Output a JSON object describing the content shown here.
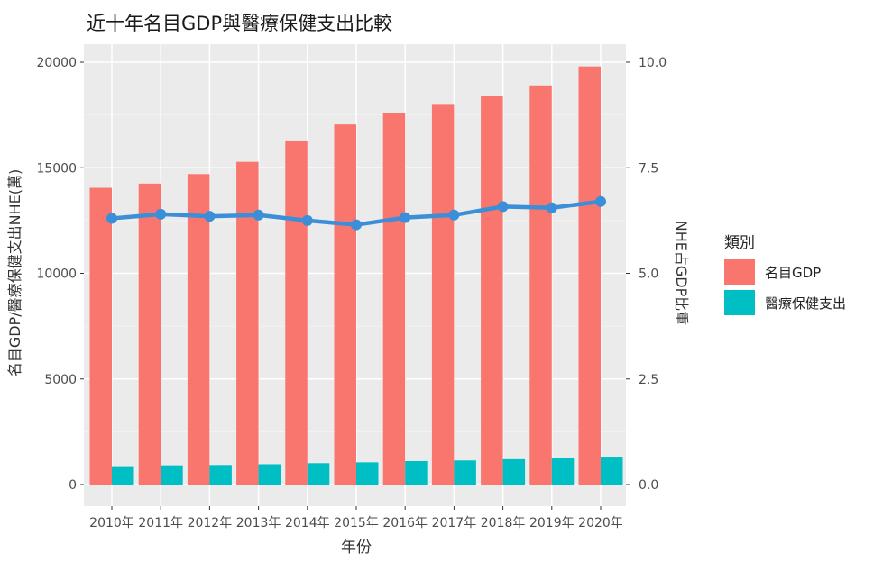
{
  "chart_data": {
    "type": "bar",
    "title": "近十年名目GDP與醫療保健支出比較",
    "xlabel": "年份",
    "ylabel": "名目GDP/醫療保健支出NHE(萬)",
    "y2label": "NHE占GDP比重",
    "categories": [
      "2010年",
      "2011年",
      "2012年",
      "2013年",
      "2014年",
      "2015年",
      "2016年",
      "2017年",
      "2018年",
      "2019年",
      "2020年"
    ],
    "ylim": [
      0,
      20000
    ],
    "yticks": [
      0,
      5000,
      10000,
      15000,
      20000
    ],
    "y2lim": [
      0,
      10
    ],
    "y2ticks": [
      "0.0",
      "2.5",
      "5.0",
      "7.5",
      "10.0"
    ],
    "legend": {
      "title": "類別",
      "position": "right"
    },
    "grid": true,
    "series": [
      {
        "name": "名目GDP",
        "type": "bar",
        "axis": "left",
        "color": "#F8766D",
        "values": [
          14050,
          14250,
          14700,
          15280,
          16250,
          17050,
          17570,
          17980,
          18380,
          18900,
          19800
        ]
      },
      {
        "name": "醫療保健支出",
        "type": "bar",
        "axis": "left",
        "color": "#00BFC4",
        "values": [
          870,
          910,
          925,
          960,
          1010,
          1050,
          1110,
          1140,
          1200,
          1240,
          1320
        ]
      },
      {
        "type": "line",
        "axis": "right",
        "color": "#3A8FD8",
        "values": [
          6.3,
          6.4,
          6.35,
          6.38,
          6.25,
          6.15,
          6.32,
          6.38,
          6.58,
          6.55,
          6.7
        ]
      }
    ]
  }
}
